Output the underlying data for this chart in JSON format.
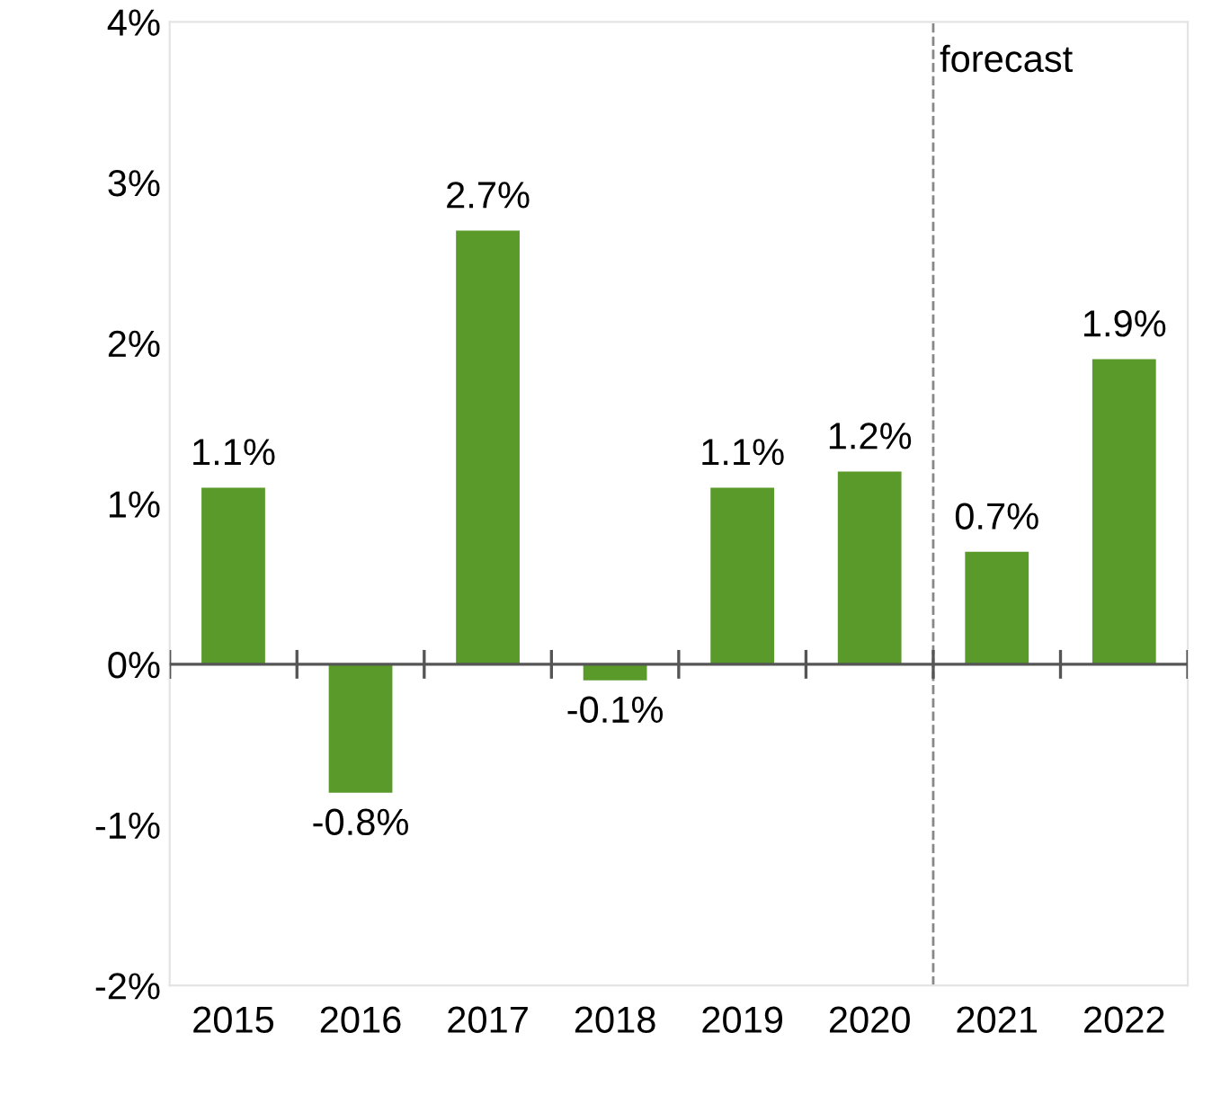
{
  "chart_data": {
    "type": "bar",
    "x": [
      2015,
      2016,
      2017,
      2018,
      2019,
      2020,
      2021,
      2022
    ],
    "values": [
      1.1,
      -0.8,
      2.7,
      -0.1,
      1.1,
      1.2,
      0.7,
      1.9
    ],
    "value_labels": [
      "1.1%",
      "-0.8%",
      "2.7%",
      "-0.1%",
      "1.1%",
      "1.2%",
      "0.7%",
      "1.9%"
    ],
    "color": "#5a9a2a",
    "xlim": [
      2014.5,
      2022.5
    ],
    "xticks": [
      2015,
      2016,
      2017,
      2018,
      2019,
      2020,
      2021,
      2022
    ],
    "ylim": [
      -2,
      4
    ],
    "yticks": [
      {
        "value": -2,
        "label": "-2%"
      },
      {
        "value": -1,
        "label": "-1%"
      },
      {
        "value": 0,
        "label": "0%"
      },
      {
        "value": 1,
        "label": "1%"
      },
      {
        "value": 2,
        "label": "2%"
      },
      {
        "value": 3,
        "label": "3%"
      },
      {
        "value": 4,
        "label": "4%"
      }
    ],
    "ref_lines": [
      {
        "axis": "x",
        "value": 2020.5,
        "label": "forecast",
        "color": "#888888",
        "line_style": "dashed"
      }
    ]
  }
}
